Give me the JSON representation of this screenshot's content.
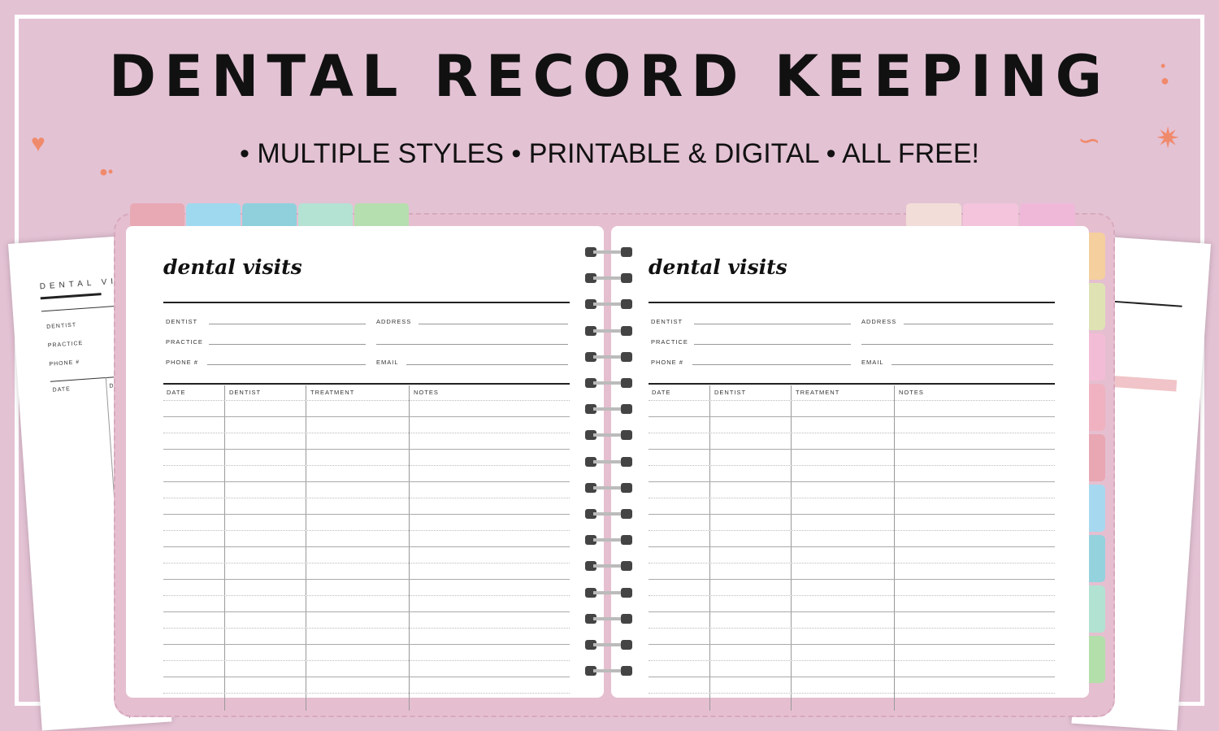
{
  "header": {
    "title": "DENTAL RECORD KEEPING",
    "subtitle": "• MULTIPLE STYLES • PRINTABLE & DIGITAL • ALL FREE!"
  },
  "back_sheet": {
    "title": "DENTAL VI",
    "fields": [
      "DENTIST",
      "PRACTICE",
      "PHONE #"
    ],
    "columns": [
      "DATE",
      "DEN"
    ]
  },
  "planner": {
    "pages": [
      {
        "title": "dental visits",
        "fields": {
          "dentist": "DENTIST",
          "address": "ADDRESS",
          "practice": "PRACTICE",
          "phone": "PHONE #",
          "email": "EMAIL"
        },
        "columns": [
          "DATE",
          "DENTIST",
          "TREATMENT",
          "NOTES"
        ]
      },
      {
        "title": "dental visits",
        "fields": {
          "dentist": "DENTIST",
          "address": "ADDRESS",
          "practice": "PRACTICE",
          "phone": "PHONE #",
          "email": "EMAIL"
        },
        "columns": [
          "DATE",
          "DENTIST",
          "TREATMENT",
          "NOTES"
        ]
      }
    ],
    "top_tabs_left": [
      "#e8a9b4",
      "#9fd9ef",
      "#8fd0dc",
      "#b4e3d3",
      "#b5dfae"
    ],
    "top_tabs_right": [
      "#f3ddd8",
      "#f3c4dc",
      "#f0b8d8"
    ],
    "side_tabs": [
      "#f5cf9e",
      "#dfe3b4",
      "#f3bcd6",
      "#f0b2c0",
      "#e9a6b3",
      "#a6d9f0",
      "#94d2de",
      "#b2e3d2",
      "#b3dfaa"
    ]
  },
  "colors": {
    "background": "#e3c2d4",
    "accent": "#f08a6c"
  }
}
